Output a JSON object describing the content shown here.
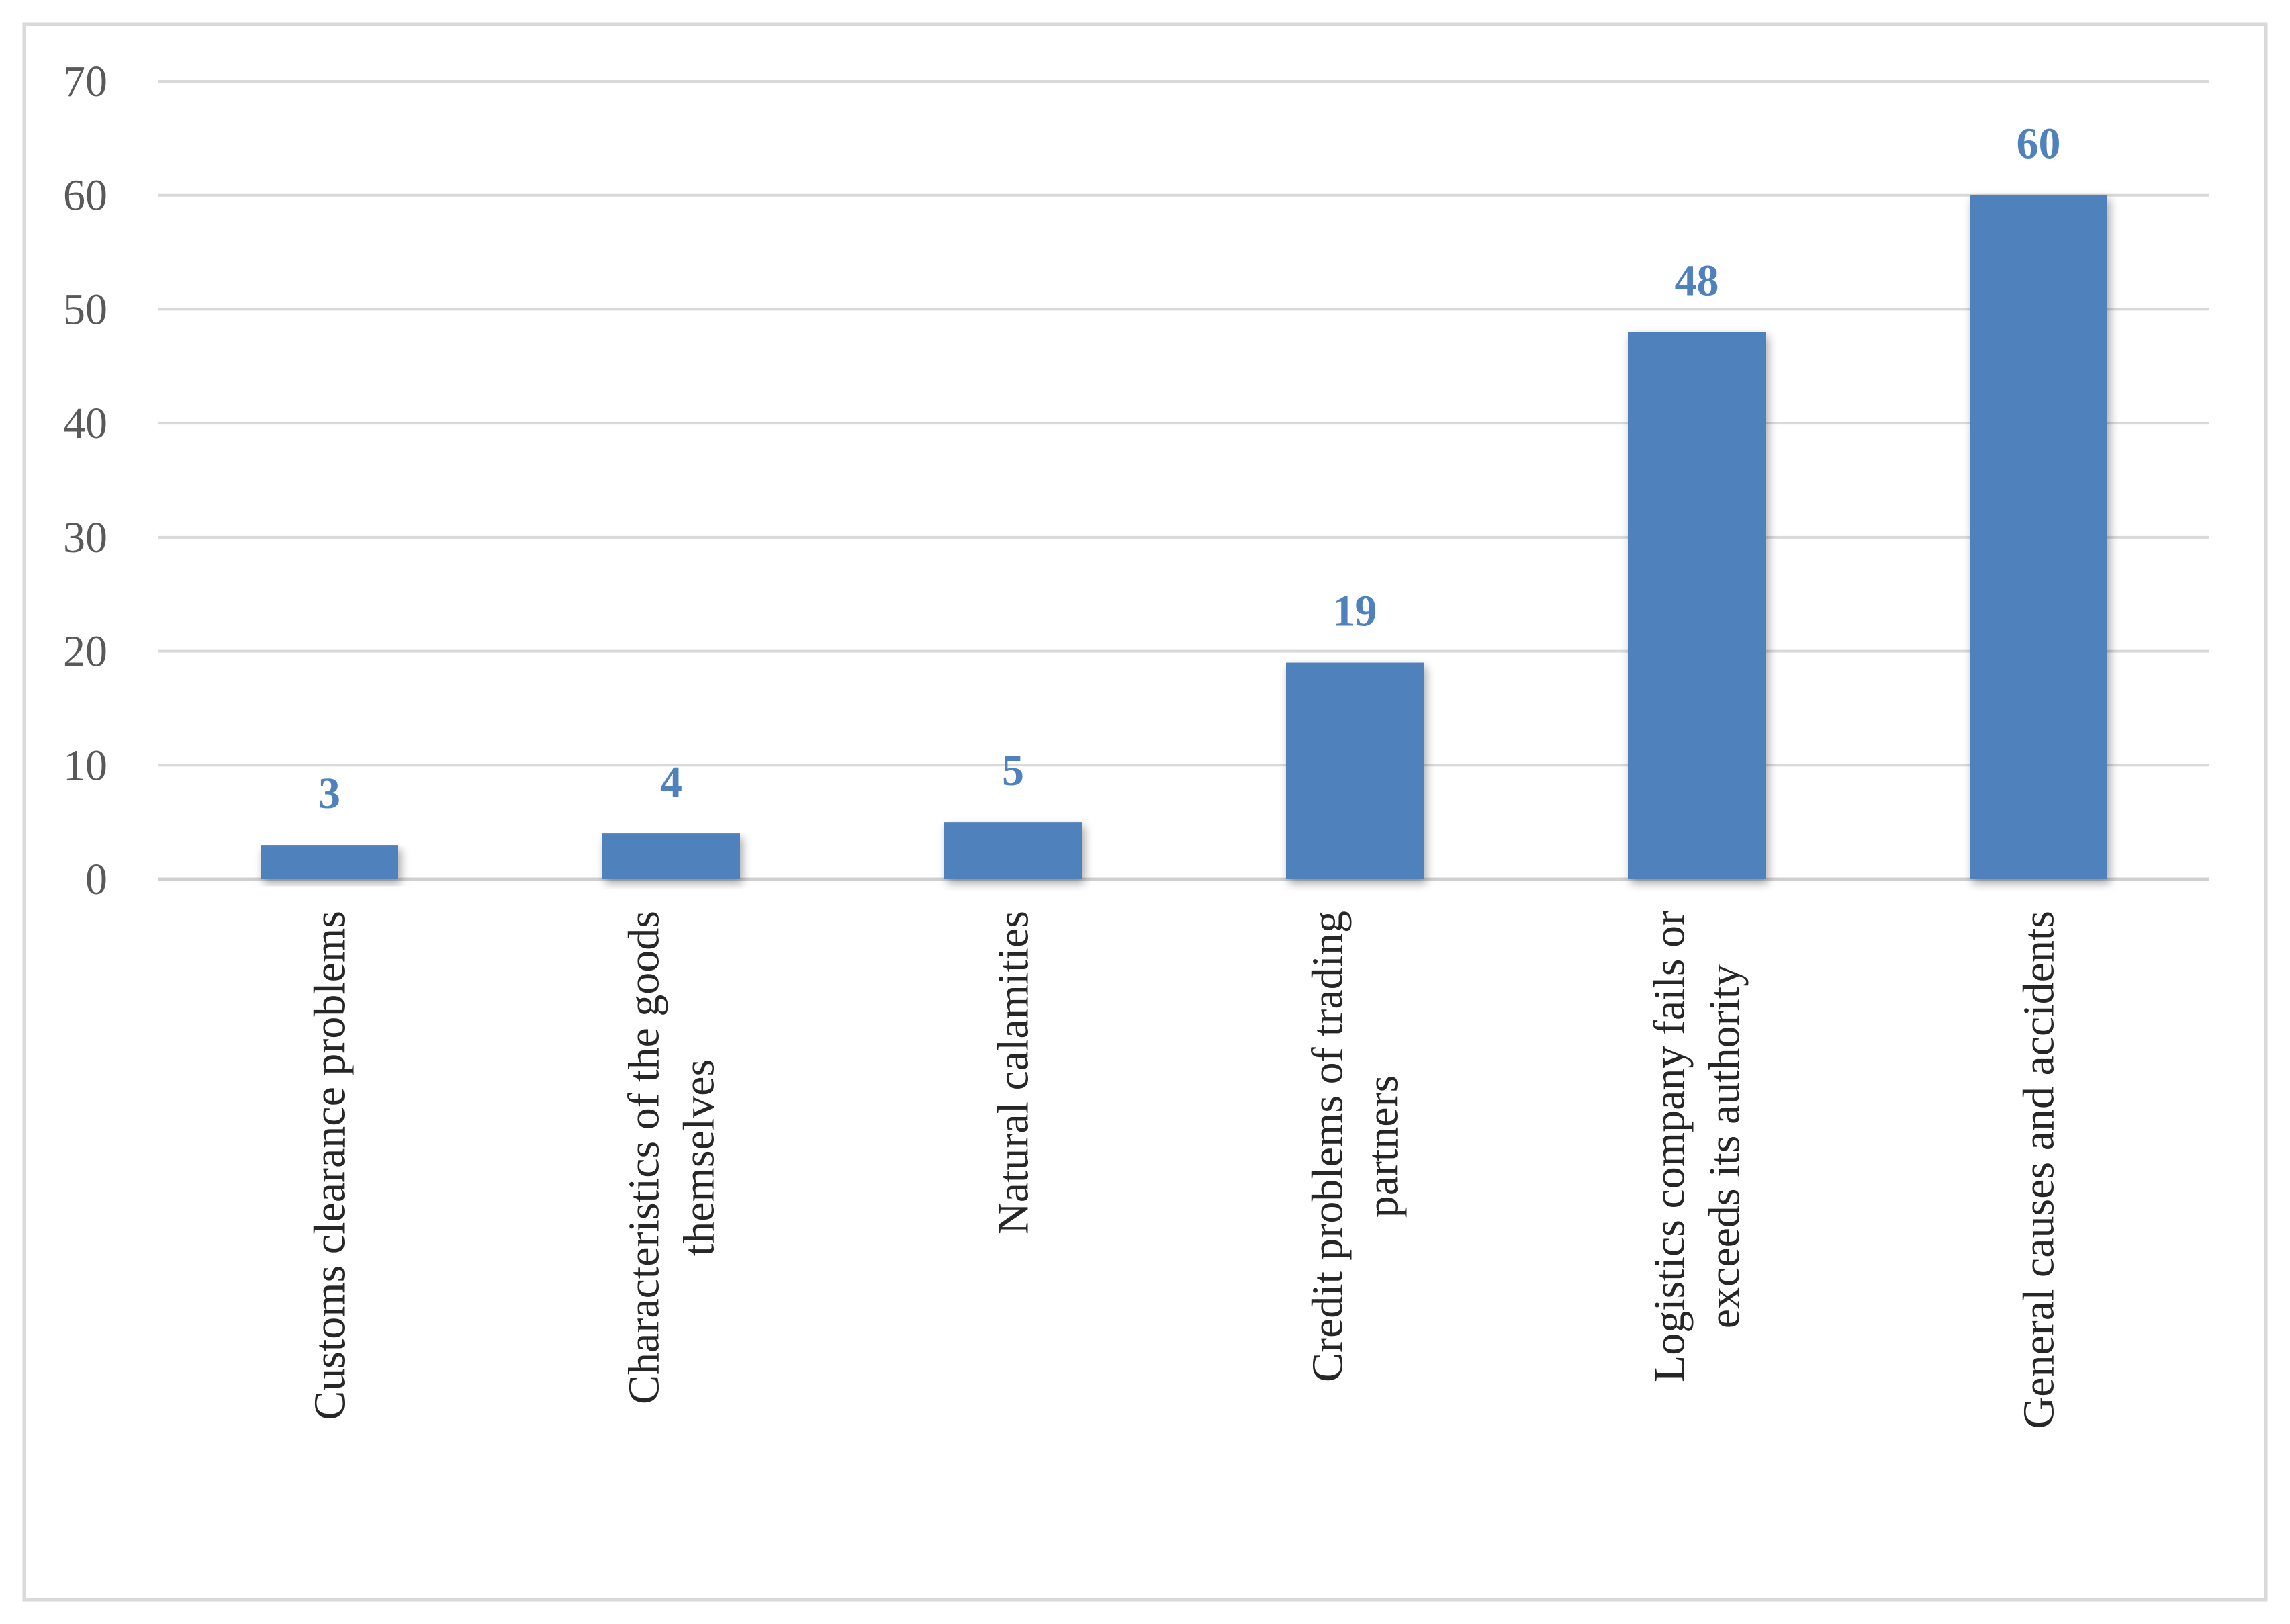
{
  "chart_data": {
    "type": "bar",
    "title": "",
    "xlabel": "",
    "ylabel": "",
    "ylim": [
      0,
      70
    ],
    "yticks": [
      0,
      10,
      20,
      30,
      40,
      50,
      60,
      70
    ],
    "grid": true,
    "legend": "none",
    "categories": [
      [
        "Customs clearance problems"
      ],
      [
        "Characteristics of the goods",
        "themselves"
      ],
      [
        "Natural calamities"
      ],
      [
        "Credit problems of trading",
        "partners"
      ],
      [
        "Logistics company fails or",
        "exceeds its authority"
      ],
      [
        "General causes and accidents"
      ]
    ],
    "values": [
      3,
      4,
      5,
      19,
      48,
      60
    ],
    "data_labels": [
      "3",
      "4",
      "5",
      "19",
      "48",
      "60"
    ],
    "colors": {
      "bar": "#4f81bd",
      "data_label": "#4f81bd",
      "grid": "#d9d9d9",
      "frame": "#d9d9d9"
    }
  }
}
